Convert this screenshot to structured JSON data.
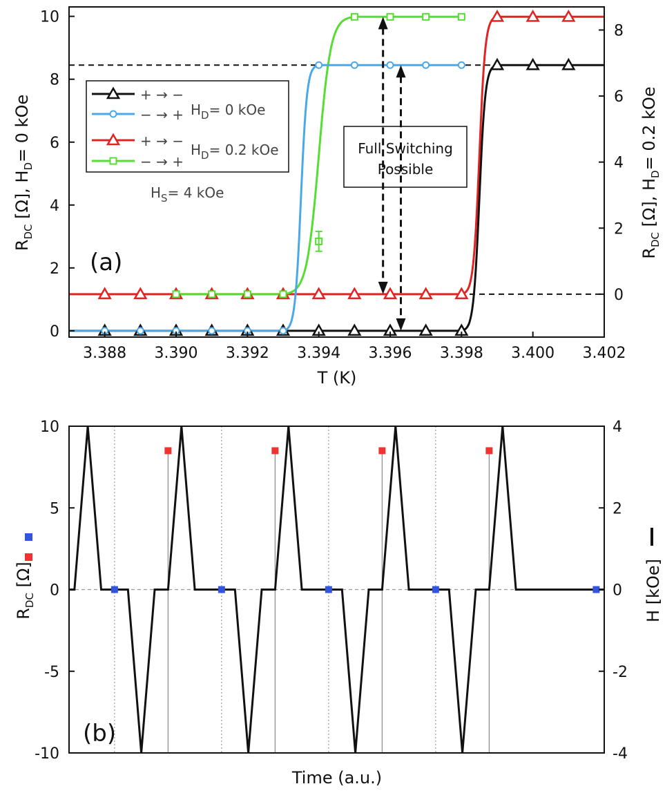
{
  "chart_data": [
    {
      "type": "line",
      "panel_label": "(a)",
      "xlabel": "T (K)",
      "ylabel_left": {
        "main": "R",
        "sub": "DC",
        "rest": " [Ω], H",
        "sub2": "D",
        "rest2": "= 0 kOe"
      },
      "ylabel_right": {
        "main": "R",
        "sub": "DC",
        "rest": " [Ω], H",
        "sub2": "D",
        "rest2": "= 0.2 kOe"
      },
      "xlim": [
        3.387,
        3.402
      ],
      "ylim_left": [
        -0.2,
        10.3
      ],
      "ylim_right": [
        -1.3,
        8.7
      ],
      "x_ticks": [
        "3.388",
        "3.390",
        "3.392",
        "3.394",
        "3.396",
        "3.398",
        "3.400",
        "3.402"
      ],
      "x_tick_values": [
        3.388,
        3.39,
        3.392,
        3.394,
        3.396,
        3.398,
        3.4,
        3.402
      ],
      "y_ticks_left": [
        0,
        2,
        4,
        6,
        8,
        10
      ],
      "y_ticks_right": [
        0,
        2,
        4,
        6,
        8
      ],
      "ref_lines_left": [
        8.45
      ],
      "ref_lines_right": [
        0
      ],
      "legend": {
        "position": "upper-left",
        "items": [
          {
            "label": "+ → −",
            "color": "#111111",
            "marker": "triangle"
          },
          {
            "label": "− → +",
            "color": "#4aa8e8",
            "marker": "circle"
          },
          {
            "label": "+ → −",
            "color": "#e02424",
            "marker": "triangle"
          },
          {
            "label": "− → +",
            "color": "#55dd33",
            "marker": "square"
          }
        ],
        "group_labels": [
          {
            "main": "H",
            "sub": "D",
            "rest": "= 0 kOe"
          },
          {
            "main": "H",
            "sub": "D",
            "rest": "= 0.2 kOe"
          }
        ],
        "note": {
          "main": "H",
          "sub": "S",
          "rest": "= 4 kOe"
        }
      },
      "annotation": {
        "line1": "Full Switching",
        "line2": "Possible"
      },
      "series": [
        {
          "axis": "left",
          "color": "#111111",
          "marker": "triangle",
          "x": [
            3.387,
            3.388,
            3.389,
            3.39,
            3.391,
            3.392,
            3.393,
            3.394,
            3.395,
            3.396,
            3.397,
            3.398,
            3.399,
            3.4,
            3.401,
            3.402
          ],
          "y": [
            0,
            0,
            0,
            0,
            0,
            0,
            0,
            0,
            0,
            0,
            0,
            0,
            8.45,
            8.45,
            8.45,
            8.45
          ],
          "transition": {
            "x0": 3.398,
            "x1": 3.399,
            "y0": 0,
            "y1": 8.45
          }
        },
        {
          "axis": "left",
          "color": "#4aa8e8",
          "marker": "circle",
          "x": [
            3.387,
            3.388,
            3.389,
            3.39,
            3.391,
            3.392,
            3.393,
            3.394,
            3.395,
            3.396,
            3.397,
            3.398
          ],
          "y": [
            0,
            0,
            0,
            0,
            0,
            0,
            0,
            8.45,
            8.45,
            8.45,
            8.45,
            8.45
          ],
          "transition": {
            "x0": 3.393,
            "x1": 3.394,
            "y0": 0,
            "y1": 8.45
          }
        },
        {
          "axis": "right",
          "color": "#e02424",
          "marker": "triangle",
          "x": [
            3.387,
            3.388,
            3.389,
            3.39,
            3.391,
            3.392,
            3.393,
            3.394,
            3.395,
            3.396,
            3.397,
            3.398,
            3.399,
            3.4,
            3.401,
            3.402
          ],
          "y": [
            0,
            0,
            0,
            0,
            0,
            0,
            0,
            0,
            0,
            0,
            0,
            0,
            8.4,
            8.4,
            8.4,
            8.4
          ],
          "transition": {
            "x0": 3.398,
            "x1": 3.399,
            "y0": 0,
            "y1": 8.4
          }
        },
        {
          "axis": "right",
          "color": "#55dd33",
          "marker": "square",
          "x": [
            3.39,
            3.391,
            3.392,
            3.393,
            3.394,
            3.395,
            3.396,
            3.397,
            3.398
          ],
          "y": [
            0,
            0,
            0,
            0,
            1.6,
            8.4,
            8.4,
            8.4,
            8.4
          ],
          "transition": {
            "x0": 3.393,
            "x1": 3.395,
            "y0": 0,
            "y1": 8.4
          }
        }
      ],
      "error_bar": {
        "x": 3.394,
        "y": 1.6,
        "err": 0.3
      }
    },
    {
      "type": "line",
      "panel_label": "(b)",
      "xlabel": "Time (a.u.)",
      "ylabel_left": {
        "main": "R",
        "sub": "DC",
        "rest": " [Ω]"
      },
      "ylabel_right": "H [kOe]",
      "ylim_left": [
        -10,
        10
      ],
      "ylim_right": [
        -4,
        4
      ],
      "y_ticks_left": [
        -10,
        -5,
        0,
        5,
        10
      ],
      "y_ticks_right": [
        -4,
        -2,
        0,
        2,
        4
      ],
      "xlim": [
        0,
        10
      ],
      "field_series": {
        "axis": "right",
        "color": "#111111",
        "x": [
          0,
          0.1,
          0.35,
          0.6,
          1.1,
          1.35,
          1.6,
          1.85,
          2.1,
          2.35,
          2.6,
          3.1,
          3.35,
          3.6,
          3.85,
          4.1,
          4.35,
          4.6,
          5.1,
          5.35,
          5.6,
          5.85,
          6.1,
          6.35,
          6.6,
          7.1,
          7.35,
          7.6,
          7.85,
          8.1,
          8.35,
          8.6,
          9.1,
          9.35,
          9.6,
          10
        ],
        "y": [
          0,
          0,
          4,
          0,
          0,
          -4,
          0,
          0,
          4,
          0,
          0,
          0,
          -4,
          0,
          0,
          4,
          0,
          0,
          0,
          -4,
          0,
          0,
          4,
          0,
          0,
          0,
          -4,
          0,
          0,
          4,
          0,
          0,
          0,
          0,
          0,
          0
        ]
      },
      "resistance_points": [
        {
          "x": 0.85,
          "y": 0,
          "color": "#3355dd"
        },
        {
          "x": 1.85,
          "y": 8.5,
          "color": "#ee3333"
        },
        {
          "x": 2.85,
          "y": 0,
          "color": "#3355dd"
        },
        {
          "x": 3.85,
          "y": 8.5,
          "color": "#ee3333"
        },
        {
          "x": 4.85,
          "y": 0,
          "color": "#3355dd"
        },
        {
          "x": 5.85,
          "y": 8.5,
          "color": "#ee3333"
        },
        {
          "x": 6.85,
          "y": 0,
          "color": "#3355dd"
        },
        {
          "x": 7.85,
          "y": 8.5,
          "color": "#ee3333"
        },
        {
          "x": 9.85,
          "y": 0,
          "color": "#3355dd"
        }
      ],
      "dotted_vlines": [
        0.85,
        2.85,
        4.85,
        6.85
      ],
      "solid_vlines": [
        1.85,
        3.85,
        5.85,
        7.85
      ]
    }
  ]
}
